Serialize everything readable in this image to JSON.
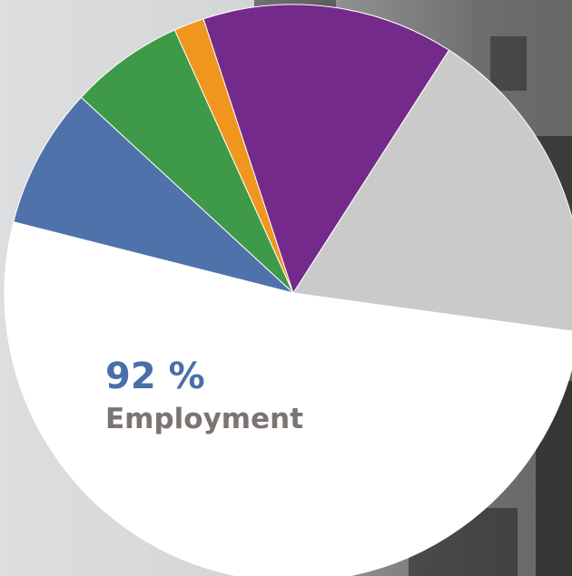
{
  "chart_data": {
    "type": "pie",
    "categories": [
      null,
      null,
      null,
      null,
      null,
      null
    ],
    "values": [
      51.8,
      7.9,
      6.4,
      1.7,
      14.1,
      18.1
    ],
    "colors": [
      "#ffffff",
      "#4f72aa",
      "#3e9a48",
      "#f0961e",
      "#742a8a",
      "#cacaca"
    ],
    "annotation": "92 %",
    "annotation_label": "Employment"
  }
}
